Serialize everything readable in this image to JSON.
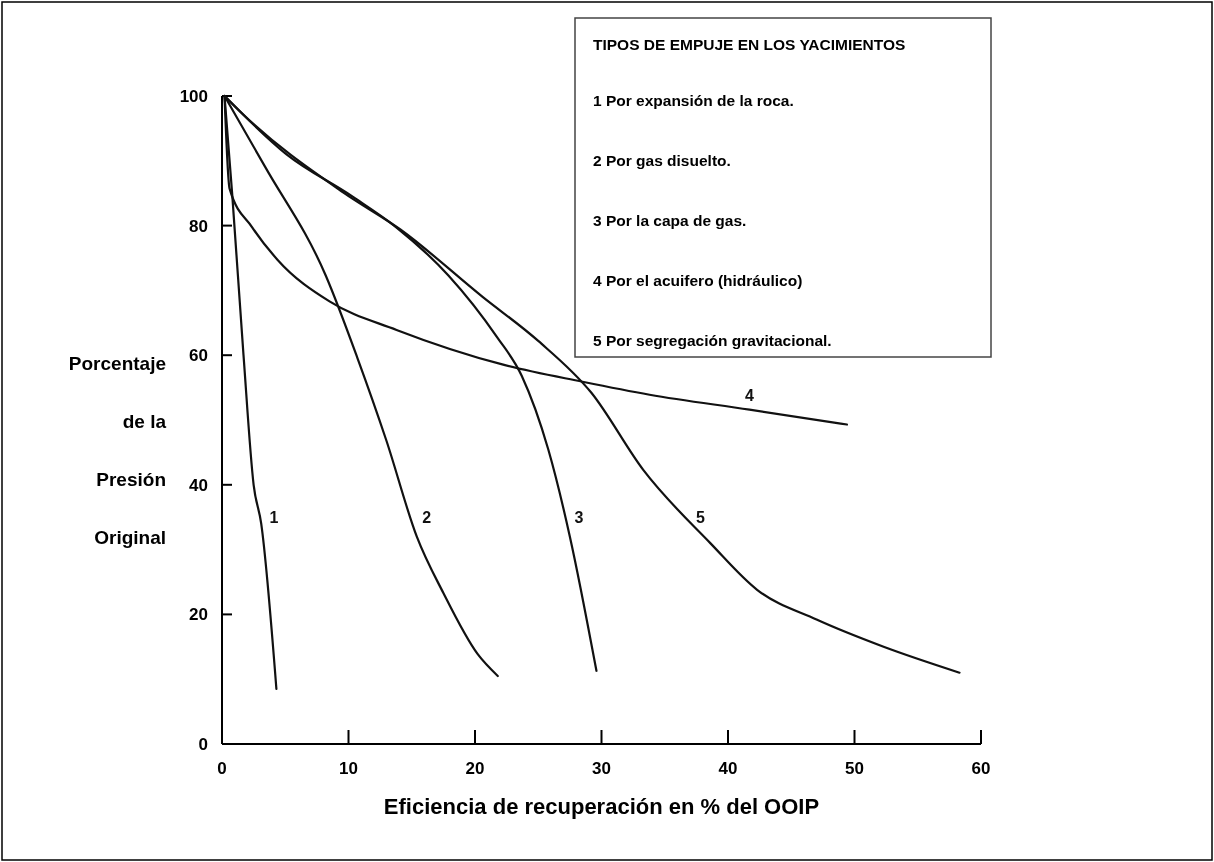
{
  "chart_data": {
    "type": "line",
    "xlabel": "Eficiencia de recuperación en % del OOIP",
    "ylabel": "Porcentaje de la Presión Original",
    "xlim": [
      0,
      60
    ],
    "xticks": [
      0,
      10,
      20,
      30,
      40,
      50,
      60
    ],
    "ylim": [
      0,
      100
    ],
    "yticks": [
      0,
      20,
      40,
      60,
      80,
      100
    ],
    "grid": false,
    "marker": "none",
    "line_style": "solid",
    "series": [
      {
        "name": "1",
        "color": "#111111",
        "x": [
          0.2,
          0.8,
          1.7,
          2.5,
          3.1,
          4.3
        ],
        "values": [
          100,
          85,
          60,
          40,
          34,
          8.5
        ]
      },
      {
        "name": "2",
        "color": "#111111",
        "x": [
          0.2,
          3.4,
          8.2,
          10.7,
          13,
          15.4,
          17.5,
          20.2,
          21.8
        ],
        "values": [
          100,
          89.1,
          72.3,
          59.6,
          46.8,
          32,
          23.3,
          13.9,
          10.5
        ]
      },
      {
        "name": "3",
        "color": "#111111",
        "x": [
          0.2,
          5.1,
          10.3,
          13.8,
          17.9,
          21.7,
          23.7,
          25.8,
          27.5,
          29.6
        ],
        "values": [
          100,
          91,
          84.5,
          79.7,
          72.3,
          62.9,
          56.8,
          45.4,
          32,
          11.3
        ]
      },
      {
        "name": "4",
        "color": "#111111",
        "x": [
          0.2,
          0.6,
          2.4,
          4.4,
          8.5,
          13.8,
          22.3,
          28.5,
          33.8,
          41.7,
          49.4
        ],
        "values": [
          100,
          85.7,
          79.7,
          74.7,
          68.3,
          63.9,
          58.5,
          55.9,
          53.9,
          51.6,
          49.3
        ]
      },
      {
        "name": "5",
        "color": "#111111",
        "x": [
          0.2,
          1.7,
          9.6,
          14.1,
          20.6,
          25,
          29.2,
          33.3,
          38.6,
          42.3,
          47,
          52.3,
          58.3
        ],
        "values": [
          100,
          97.1,
          85.1,
          79.4,
          69,
          62.2,
          54.2,
          42.3,
          31,
          23.8,
          19.2,
          15,
          11
        ]
      }
    ],
    "annotations": [
      "TIPOS DE EMPUJE EN LOS YACIMIENTOS",
      "1 Por expansión de la roca.",
      "2 Por gas disuelto.",
      "3 Por la capa de gas.",
      "4 Por el acuifero (hidráulico)",
      "5 Por segregación gravitacional."
    ]
  }
}
